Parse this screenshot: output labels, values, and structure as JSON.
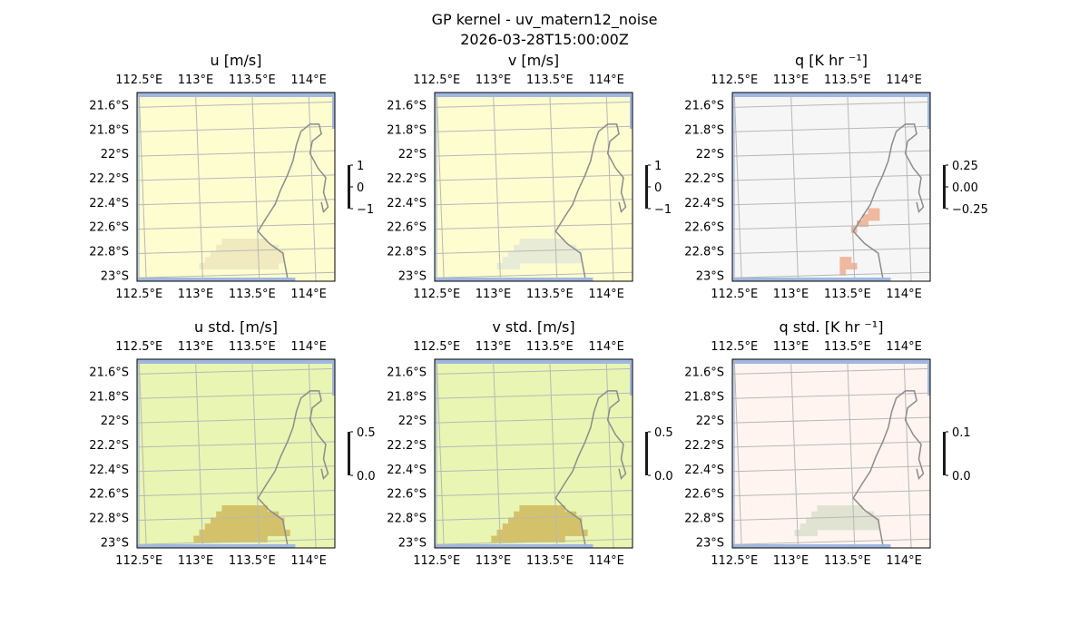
{
  "figure": {
    "title": "GP kernel - uv_matern12_noise",
    "subtitle": "2026-03-28T15:00:00Z"
  },
  "axes": {
    "lon_ticks": [
      "112.5°E",
      "113°E",
      "113.5°E",
      "114°E"
    ],
    "lon_values": [
      112.5,
      113.0,
      113.5,
      114.0
    ],
    "lat_ticks": [
      "21.6°S",
      "21.8°S",
      "22°S",
      "22.2°S",
      "22.4°S",
      "22.6°S",
      "22.8°S",
      "23°S"
    ],
    "lat_values": [
      -21.6,
      -21.8,
      -22.0,
      -22.2,
      -22.4,
      -22.6,
      -22.8,
      -23.0
    ],
    "lon_range": [
      112.45,
      114.2
    ],
    "lat_range": [
      -23.05,
      -21.5
    ]
  },
  "colors": {
    "coast": "#8c8c8c",
    "ocean": "#9fb7e0",
    "grid": "#b8b8b8"
  },
  "chart_data": [
    {
      "type": "heatmap",
      "title": "u [m/s]",
      "background": "#fefdd0",
      "anomaly_color": "#f1eac0",
      "anomaly_cells": 40,
      "colorbar": {
        "ticks": [
          "1",
          "0",
          "−1"
        ],
        "vmin": -1,
        "vmax": 1
      },
      "grid": true
    },
    {
      "type": "heatmap",
      "title": "v [m/s]",
      "background": "#fefdd0",
      "anomaly_color": "#e8ecd6",
      "anomaly_cells": 30,
      "colorbar": {
        "ticks": [
          "1",
          "0",
          "−1"
        ],
        "vmin": -1,
        "vmax": 1
      },
      "grid": true
    },
    {
      "type": "heatmap",
      "title": "q [K hr ⁻¹]",
      "background": "#f6f6f6",
      "anomaly_color": "#f0b89e",
      "anomaly_cells": 14,
      "colorbar": {
        "ticks": [
          "0.25",
          "0.00",
          "−0.25"
        ],
        "vmin": -0.25,
        "vmax": 0.25
      },
      "grid": true
    },
    {
      "type": "heatmap",
      "title": "u std. [m/s]",
      "background": "#e9f5b2",
      "anomaly_color": "#d4c26a",
      "anomaly_cells": 55,
      "colorbar": {
        "ticks": [
          "0.5",
          "0.0"
        ],
        "vmin": 0.0,
        "vmax": 0.5
      },
      "grid": true
    },
    {
      "type": "heatmap",
      "title": "v std. [m/s]",
      "background": "#e9f5b2",
      "anomaly_color": "#d4c26a",
      "anomaly_cells": 55,
      "colorbar": {
        "ticks": [
          "0.5",
          "0.0"
        ],
        "vmin": 0.0,
        "vmax": 0.5
      },
      "grid": true
    },
    {
      "type": "heatmap",
      "title": "q std. [K hr ⁻¹]",
      "background": "#fff4f0",
      "anomaly_color": "#e0e3d2",
      "anomaly_cells": 30,
      "colorbar": {
        "ticks": [
          "0.1",
          "0.0"
        ],
        "vmin": 0.0,
        "vmax": 0.1
      },
      "grid": true
    }
  ]
}
